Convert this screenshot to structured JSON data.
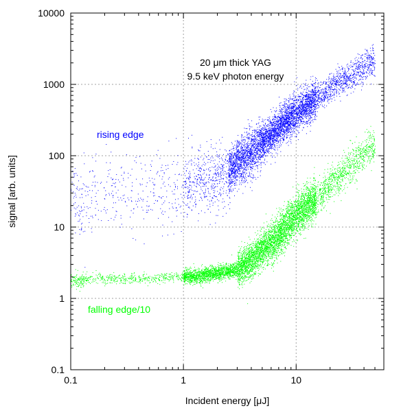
{
  "chart_data": {
    "type": "scatter",
    "xlabel": "Incident energy [μJ]",
    "ylabel": "signal [arb. units]",
    "xscale": "log",
    "yscale": "log",
    "xlim": [
      0.1,
      60
    ],
    "ylim": [
      0.1,
      10000
    ],
    "grid": true,
    "x_ticks": [
      0.1,
      1,
      10
    ],
    "x_tick_labels": [
      "0.1",
      "1",
      "10"
    ],
    "y_ticks": [
      0.1,
      1,
      10,
      100,
      1000,
      10000
    ],
    "y_tick_labels": [
      "0.1",
      "1",
      "10",
      "100",
      "1000",
      "10000"
    ],
    "annotations": [
      {
        "text": "20  μm thick YAG"
      },
      {
        "text": "9.5 keV photon energy"
      }
    ],
    "series": [
      {
        "name": "rising edge",
        "color": "#0000ff",
        "description_points": [
          [
            0.1,
            40
          ],
          [
            0.12,
            20
          ],
          [
            0.15,
            25
          ],
          [
            0.2,
            30
          ],
          [
            0.3,
            28
          ],
          [
            0.5,
            35
          ],
          [
            0.8,
            30
          ],
          [
            1.2,
            40
          ],
          [
            1.6,
            45
          ],
          [
            2.0,
            50
          ],
          [
            2.5,
            60
          ],
          [
            3.0,
            80
          ],
          [
            4.0,
            110
          ],
          [
            5.0,
            150
          ],
          [
            6.0,
            200
          ],
          [
            8.0,
            300
          ],
          [
            10.0,
            400
          ],
          [
            15.0,
            650
          ],
          [
            20.0,
            900
          ],
          [
            30.0,
            1300
          ],
          [
            45.0,
            2000
          ]
        ]
      },
      {
        "name": "falling edge/10",
        "color": "#00ff00",
        "description_points": [
          [
            0.1,
            1.8
          ],
          [
            0.15,
            1.9
          ],
          [
            0.2,
            1.9
          ],
          [
            0.3,
            1.9
          ],
          [
            0.5,
            1.9
          ],
          [
            0.8,
            2.0
          ],
          [
            1.0,
            2.0
          ],
          [
            1.5,
            2.1
          ],
          [
            2.0,
            2.3
          ],
          [
            3.0,
            2.6
          ],
          [
            4.0,
            3.5
          ],
          [
            5.0,
            5
          ],
          [
            6.0,
            6
          ],
          [
            8.0,
            10
          ],
          [
            10.0,
            15
          ],
          [
            15.0,
            25
          ],
          [
            20.0,
            40
          ],
          [
            30.0,
            70
          ],
          [
            45.0,
            130
          ]
        ]
      }
    ]
  }
}
